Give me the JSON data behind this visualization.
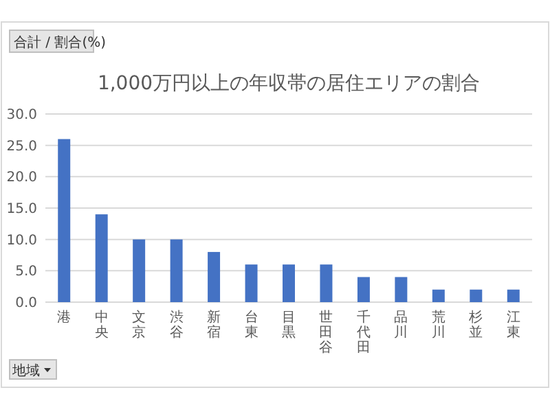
{
  "chart_data": {
    "type": "bar",
    "title": "1,000万円以上の年収帯の居住エリアの割合",
    "ylabel": "合計 / 割合(%)",
    "xlabel": "地域",
    "categories": [
      "港",
      "中央",
      "文京",
      "渋谷",
      "新宿",
      "台東",
      "目黒",
      "世田谷",
      "千代田",
      "品川",
      "荒川",
      "杉並",
      "江東"
    ],
    "values": [
      26,
      14,
      10,
      10,
      8,
      6,
      6,
      6,
      4,
      4,
      2,
      2,
      2
    ],
    "color": "#4472c4",
    "ylim": [
      0,
      30
    ],
    "yticks": [
      {
        "value": 0,
        "label": "0.0"
      },
      {
        "value": 5,
        "label": "5.0"
      },
      {
        "value": 10,
        "label": "10.0"
      },
      {
        "value": 15,
        "label": "15.0"
      },
      {
        "value": 20,
        "label": "20.0"
      },
      {
        "value": 25,
        "label": "25.0"
      },
      {
        "value": 30,
        "label": "30.0"
      }
    ],
    "grid": "y"
  }
}
